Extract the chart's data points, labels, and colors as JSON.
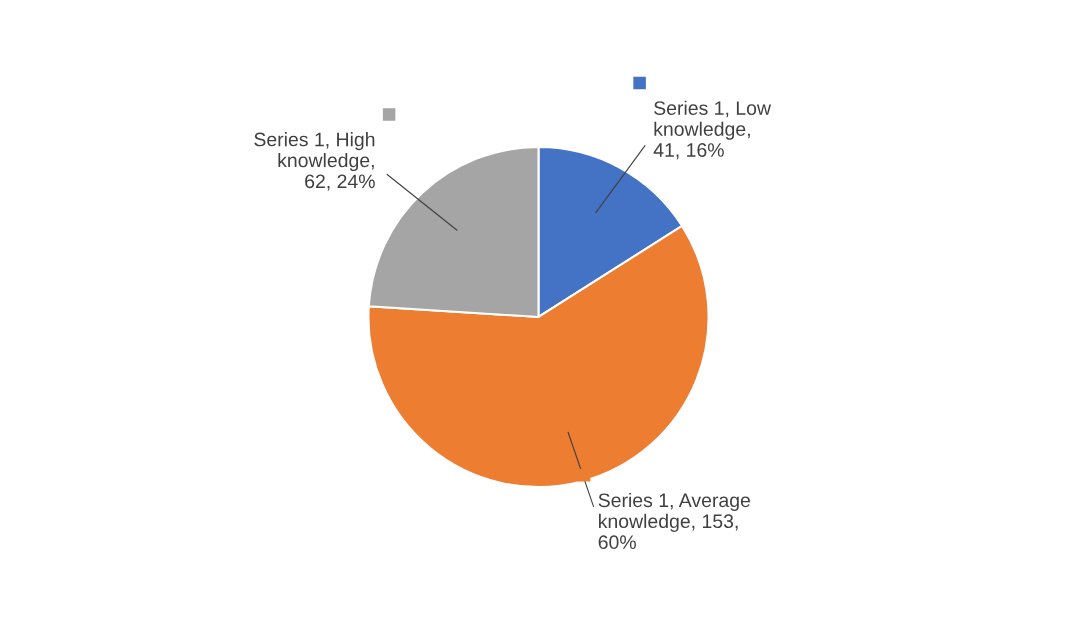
{
  "chart_data": {
    "type": "pie",
    "categories": [
      "Series 1, Low\nknowledge,\n41, 16%",
      "Series 1, Average\nknowledge, 153,\n60%",
      "Series 1, High\nknowledge,\n62, 24%"
    ],
    "values": [
      16,
      60,
      24
    ],
    "colors": [
      "#4472c4",
      "#ed7d31",
      "#a5a5a5"
    ],
    "legend": "top"
  }
}
